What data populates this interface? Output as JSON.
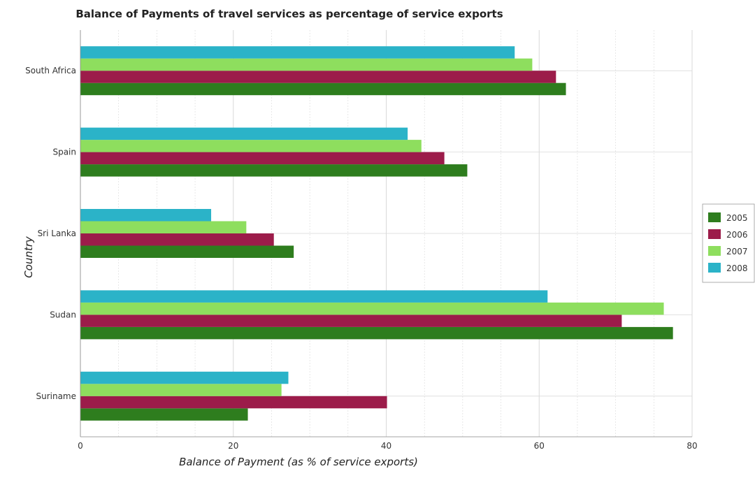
{
  "chart_data": {
    "type": "bar",
    "orientation": "horizontal",
    "title": "Balance of Payments of travel services as percentage of service exports",
    "xlabel": "Balance of Payment (as % of service exports)",
    "ylabel": "Country",
    "categories": [
      "South Africa",
      "Spain",
      "Sri Lanka",
      "Sudan",
      "Suriname"
    ],
    "series": [
      {
        "name": "2005",
        "color": "#2e7d1e",
        "values": [
          63.5,
          50.6,
          27.9,
          77.5,
          21.9
        ]
      },
      {
        "name": "2006",
        "color": "#9c1c4a",
        "values": [
          62.2,
          47.6,
          25.3,
          70.8,
          40.1
        ]
      },
      {
        "name": "2007",
        "color": "#8ede5e",
        "values": [
          59.1,
          44.6,
          21.7,
          76.3,
          26.3
        ]
      },
      {
        "name": "2008",
        "color": "#2bb3c8",
        "values": [
          56.8,
          42.8,
          17.1,
          61.1,
          27.2
        ]
      }
    ],
    "xlim": [
      0,
      80
    ],
    "xticks": [
      0,
      20,
      40,
      60,
      80
    ],
    "grid": true,
    "legend_position": "right"
  }
}
